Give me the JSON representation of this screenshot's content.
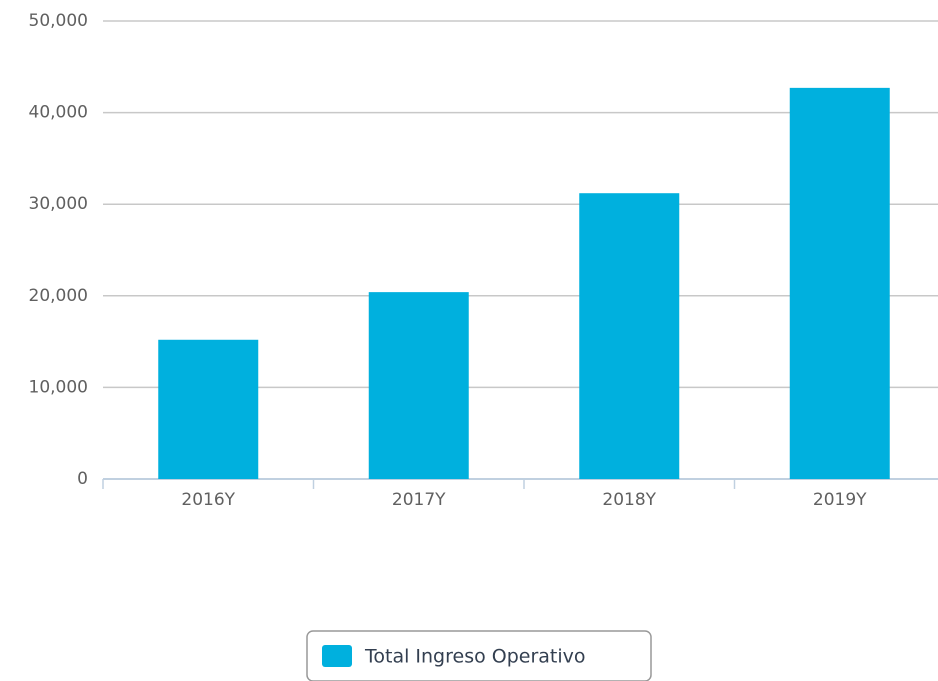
{
  "chart_data": {
    "type": "bar",
    "categories": [
      "2016Y",
      "2017Y",
      "2018Y",
      "2019Y"
    ],
    "series": [
      {
        "name": "Total Ingreso Operativo",
        "color": "#00b0de",
        "values": [
          15200,
          20400,
          31200,
          42700
        ]
      }
    ],
    "ylim": [
      0,
      50000
    ],
    "yticks": [
      0,
      {
        "value": 10000,
        "label": "10,000"
      },
      {
        "value": 20000,
        "label": "20,000"
      },
      {
        "value": 30000,
        "label": "30,000"
      },
      {
        "value": 40000,
        "label": "40,000"
      },
      {
        "value": 50000,
        "label": "50,000"
      }
    ],
    "grid": true,
    "legend": "bottom"
  }
}
